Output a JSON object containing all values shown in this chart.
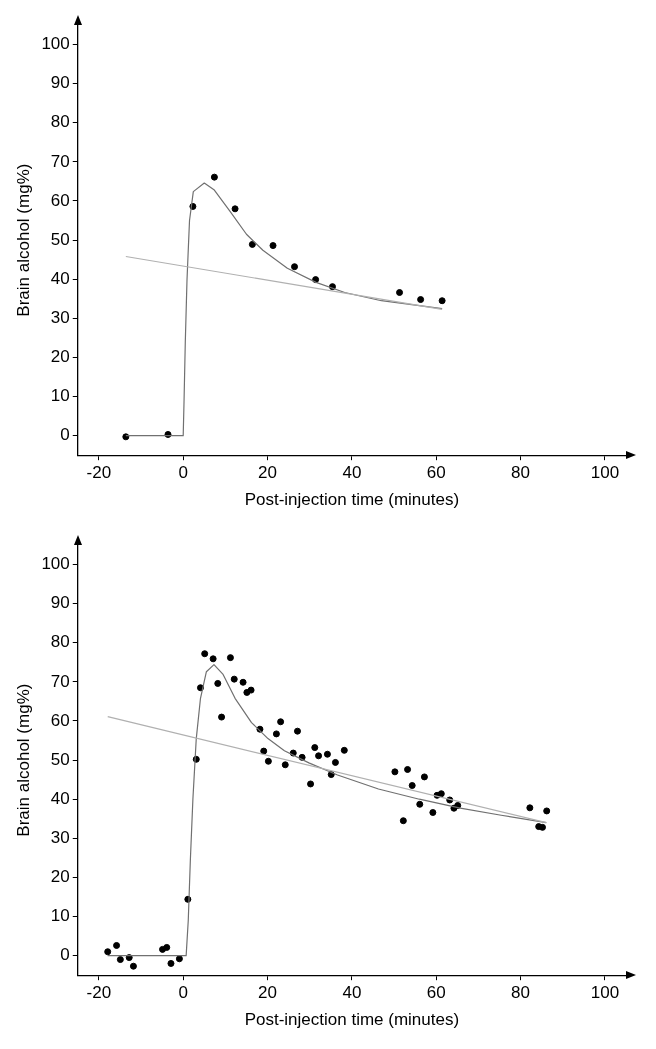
{
  "chart_data": [
    {
      "type": "scatter",
      "xlabel": "Post-injection time (minutes)",
      "ylabel": "Brain alcohol (mg%)",
      "xlim": [
        -25,
        105
      ],
      "ylim": [
        -5,
        105
      ],
      "xticks": [
        -20,
        0,
        20,
        40,
        60,
        80,
        100
      ],
      "yticks": [
        0,
        10,
        20,
        30,
        40,
        50,
        60,
        70,
        80,
        90,
        100
      ],
      "grid": false,
      "legend": false,
      "series": [
        {
          "type": "line",
          "color": "#b0b0b0",
          "marker": "none",
          "x": [
            -13.6,
            61.4
          ],
          "values": [
            45.8,
            32.3
          ]
        },
        {
          "type": "line",
          "color": "#707070",
          "marker": "none",
          "x": [
            -13.6,
            0,
            0.2,
            0.5,
            0.9,
            1.3,
            1.5,
            2.4,
            5,
            7.3,
            11.2,
            15.0,
            18.9,
            24.7,
            31.5,
            38.3,
            47,
            61.4
          ],
          "values": [
            0,
            0,
            8.8,
            24,
            39.7,
            50,
            55,
            62.4,
            64.6,
            62.9,
            57.2,
            51.5,
            47.4,
            42.8,
            39.2,
            36.6,
            34.5,
            32.5
          ]
        },
        {
          "type": "scatter",
          "color": "#000000",
          "marker": "circle",
          "x": [
            -13.6,
            -3.6,
            2.3,
            7.4,
            12.3,
            16.4,
            21.3,
            26.4,
            31.4,
            35.4,
            51.3,
            56.3,
            61.4
          ],
          "values": [
            -0.3,
            0.3,
            58.6,
            66.1,
            58.0,
            48.9,
            48.6,
            43.2,
            39.9,
            38.1,
            36.6,
            34.8,
            34.5
          ]
        }
      ]
    },
    {
      "type": "scatter",
      "xlabel": "Post-injection time (minutes)",
      "ylabel": "Brain alcohol (mg%)",
      "xlim": [
        -25,
        105
      ],
      "ylim": [
        -5,
        105
      ],
      "xticks": [
        -20,
        0,
        20,
        40,
        60,
        80,
        100
      ],
      "yticks": [
        0,
        10,
        20,
        30,
        40,
        50,
        60,
        70,
        80,
        90,
        100
      ],
      "grid": false,
      "legend": false,
      "series": [
        {
          "type": "line",
          "color": "#b0b0b0",
          "marker": "none",
          "x": [
            -17.9,
            86.1
          ],
          "values": [
            61.1,
            34.0
          ]
        },
        {
          "type": "line",
          "color": "#707070",
          "marker": "none",
          "x": [
            -17.9,
            0.7,
            1.2,
            1.7,
            2.3,
            3.1,
            4.1,
            5.5,
            7.3,
            9.4,
            12.3,
            16.2,
            20.1,
            24.0,
            29.8,
            36.6,
            46.3,
            56.0,
            65.7,
            75.4,
            86.1
          ],
          "values": [
            0,
            0,
            9,
            24.5,
            40,
            55.5,
            65.8,
            72.6,
            74.4,
            72.0,
            65.8,
            59.6,
            55.5,
            52.4,
            49.3,
            46.2,
            42.6,
            40.0,
            37.7,
            35.9,
            34.0
          ]
        },
        {
          "type": "scatter",
          "color": "#000000",
          "marker": "circle",
          "x": [
            -17.9,
            -15.8,
            -14.9,
            -12.8,
            -11.8,
            -4.9,
            -3.9,
            -2.9,
            -0.9,
            1.1,
            3.1,
            4.1,
            5.1,
            7.1,
            8.2,
            9.1,
            11.2,
            12.1,
            14.2,
            15.1,
            16.1,
            18.2,
            19.1,
            20.2,
            22.1,
            23.1,
            24.2,
            26.1,
            27.1,
            28.2,
            30.2,
            31.2,
            32.1,
            34.2,
            35.1,
            36.1,
            38.2,
            50.2,
            52.2,
            53.2,
            54.3,
            56.1,
            57.2,
            59.2,
            60.2,
            61.2,
            63.2,
            64.2,
            65.1,
            82.2,
            84.3,
            85.2,
            86.2
          ],
          "values": [
            1.0,
            2.6,
            -1.0,
            -0.5,
            -2.7,
            1.6,
            2.1,
            -2.0,
            -0.8,
            14.4,
            50.2,
            68.5,
            77.2,
            75.9,
            69.6,
            61.0,
            76.2,
            70.7,
            69.9,
            67.3,
            67.9,
            57.9,
            52.3,
            49.7,
            56.7,
            59.8,
            48.8,
            51.8,
            57.4,
            50.7,
            43.9,
            53.2,
            51.1,
            51.5,
            46.3,
            49.4,
            52.5,
            47.0,
            34.5,
            47.6,
            43.5,
            38.7,
            45.7,
            36.6,
            41.0,
            41.4,
            39.8,
            37.7,
            38.4,
            37.8,
            33.0,
            32.8,
            37.0
          ]
        }
      ]
    }
  ]
}
